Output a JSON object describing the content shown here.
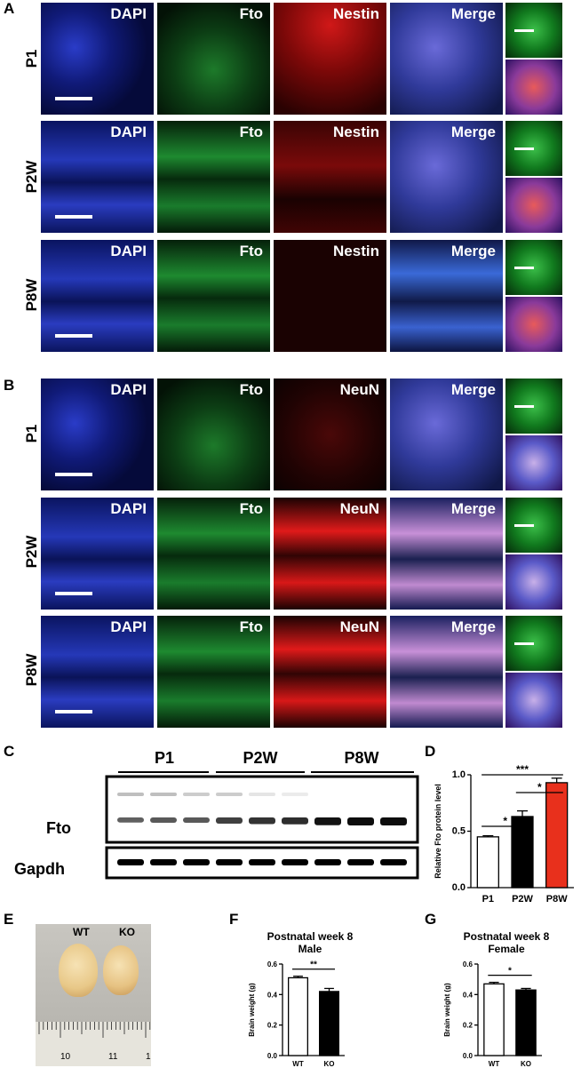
{
  "panels": {
    "A": "A",
    "B": "B",
    "C": "C",
    "D": "D",
    "E": "E",
    "F": "F",
    "G": "G"
  },
  "channels": {
    "dapi": "DAPI",
    "fto": "Fto",
    "nestin": "Nestin",
    "neun": "NeuN",
    "merge": "Merge"
  },
  "ages": [
    "P1",
    "P2W",
    "P8W"
  ],
  "blot": {
    "fto_label": "Fto",
    "gapdh_label": "Gapdh",
    "groups": [
      "P1",
      "P2W",
      "P8W"
    ]
  },
  "photo": {
    "wt": "WT",
    "ko": "KO",
    "ruler_ticks": [
      "10",
      "11",
      "1"
    ]
  },
  "chart_data": [
    {
      "id": "D",
      "type": "bar",
      "categories": [
        "P1",
        "P2W",
        "P8W"
      ],
      "values": [
        0.45,
        0.63,
        0.93
      ],
      "errors": [
        0.01,
        0.05,
        0.04
      ],
      "ylabel": "Relative Fto protein level",
      "ylim": [
        0,
        1.0
      ],
      "yticks": [
        "0.0",
        "0.5",
        "1.0"
      ],
      "significance": [
        {
          "from": "P1",
          "to": "P2W",
          "label": "*"
        },
        {
          "from": "P2W",
          "to": "P8W",
          "label": "*"
        },
        {
          "from": "P1",
          "to": "P8W",
          "label": "***"
        }
      ],
      "colors": [
        "#ffffff",
        "#000000",
        "#e8301c"
      ]
    },
    {
      "id": "F",
      "type": "bar",
      "title": "Postnatal week 8",
      "subtitle": "Male",
      "categories": [
        "WT",
        "KO"
      ],
      "values": [
        0.51,
        0.42
      ],
      "errors": [
        0.01,
        0.02
      ],
      "ylabel": "Brain weight (g)",
      "ylim": [
        0,
        0.6
      ],
      "yticks": [
        "0.0",
        "0.2",
        "0.4",
        "0.6"
      ],
      "significance": [
        {
          "from": "WT",
          "to": "KO",
          "label": "**"
        }
      ],
      "colors": [
        "#ffffff",
        "#000000"
      ]
    },
    {
      "id": "G",
      "type": "bar",
      "title": "Postnatal week 8",
      "subtitle": "Female",
      "categories": [
        "WT",
        "KO"
      ],
      "values": [
        0.47,
        0.43
      ],
      "errors": [
        0.01,
        0.01
      ],
      "ylabel": "Brain weight (g)",
      "ylim": [
        0,
        0.6
      ],
      "yticks": [
        "0.0",
        "0.2",
        "0.4",
        "0.6"
      ],
      "significance": [
        {
          "from": "WT",
          "to": "KO",
          "label": "*"
        }
      ],
      "colors": [
        "#ffffff",
        "#000000"
      ]
    }
  ]
}
